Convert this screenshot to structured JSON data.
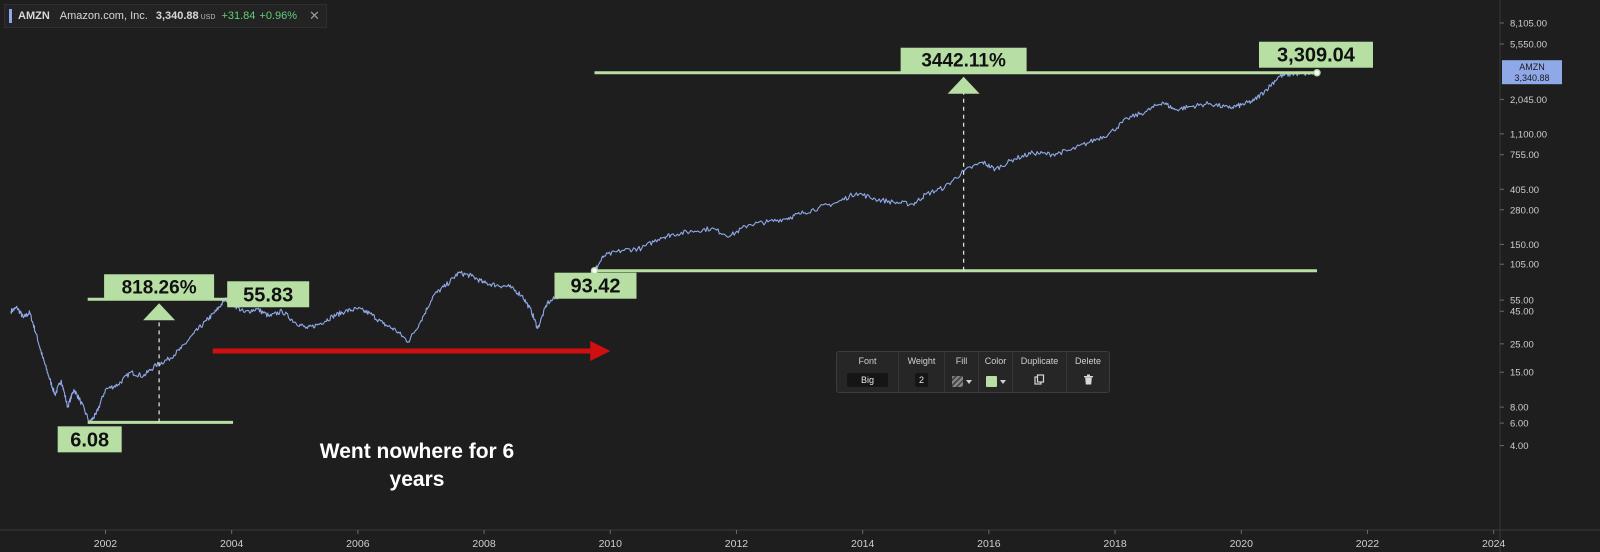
{
  "legend": {
    "symbol": "AMZN",
    "name": "Amazon.com, Inc.",
    "price": "3,340.88",
    "currency": "USD",
    "change": "+31.84",
    "change_pct": "+0.96%",
    "close_glyph": "✕"
  },
  "price_tag": {
    "symbol": "AMZN",
    "price": "3,340.88"
  },
  "toolbar": {
    "font_label": "Font",
    "font_value": "Big",
    "weight_label": "Weight",
    "weight_value": "2",
    "fill_label": "Fill",
    "color_label": "Color",
    "duplicate_label": "Duplicate",
    "delete_label": "Delete",
    "fill_icon": "hatched-swatch-icon",
    "duplicate_icon": "duplicate-icon",
    "delete_icon": "trash-icon"
  },
  "colors": {
    "background": "#1e1e1e",
    "series": "#8fa8e8",
    "annotation": "#b7dfa4",
    "annotation_text": "#111111",
    "arrow": "#d01010",
    "axis_text": "#cfcfcf",
    "tag_bg": "#8fa8e8"
  },
  "chart_data": {
    "type": "line",
    "y_scale": "log",
    "x_ticks": [
      "2002",
      "2004",
      "2006",
      "2008",
      "2010",
      "2012",
      "2014",
      "2016",
      "2018",
      "2020",
      "2022",
      "2024"
    ],
    "y_ticks": [
      4,
      6,
      8,
      15,
      25,
      45,
      55,
      105,
      150,
      280,
      405,
      755,
      1100,
      2045,
      5550,
      8105
    ],
    "y_tick_labels": [
      "4.00",
      "6.00",
      "8.00",
      "15.00",
      "25.00",
      "45.00",
      "55.00",
      "105.00",
      "150.00",
      "280.00",
      "405.00",
      "755.00",
      "1,100.00",
      "2,045.00",
      "5,550.00",
      "8,105.00"
    ],
    "xlim": [
      2000.5,
      2024.2
    ],
    "ylim": [
      3.6,
      11000
    ],
    "series": [
      {
        "symbol": "AMZN",
        "x": [
          2000.5,
          2000.6,
          2000.7,
          2000.8,
          2000.9,
          2001.0,
          2001.1,
          2001.2,
          2001.3,
          2001.4,
          2001.5,
          2001.6,
          2001.75,
          2001.85,
          2002.0,
          2002.2,
          2002.4,
          2002.6,
          2002.8,
          2003.0,
          2003.2,
          2003.4,
          2003.6,
          2003.75,
          2003.9,
          2004.0,
          2004.2,
          2004.4,
          2004.6,
          2004.8,
          2005.0,
          2005.2,
          2005.4,
          2005.6,
          2005.8,
          2006.0,
          2006.2,
          2006.4,
          2006.6,
          2006.8,
          2007.0,
          2007.2,
          2007.4,
          2007.6,
          2007.8,
          2008.0,
          2008.2,
          2008.4,
          2008.6,
          2008.75,
          2008.85,
          2009.0,
          2009.2,
          2009.4,
          2009.6,
          2009.75,
          2009.9,
          2010.2,
          2010.5,
          2010.8,
          2011.0,
          2011.3,
          2011.6,
          2011.9,
          2012.2,
          2012.5,
          2012.8,
          2013.0,
          2013.3,
          2013.6,
          2013.9,
          2014.2,
          2014.5,
          2014.8,
          2015.0,
          2015.3,
          2015.6,
          2015.9,
          2016.1,
          2016.4,
          2016.7,
          2017.0,
          2017.3,
          2017.6,
          2017.9,
          2018.2,
          2018.5,
          2018.75,
          2018.95,
          2019.2,
          2019.5,
          2019.8,
          2020.0,
          2020.2,
          2020.4,
          2020.6,
          2020.8,
          2021.0,
          2021.2
        ],
        "y": [
          45,
          48,
          40,
          44,
          30,
          20,
          14,
          10,
          13,
          8,
          11,
          9,
          6.08,
          7,
          11,
          12,
          15,
          14,
          17,
          19,
          23,
          30,
          38,
          45,
          55.83,
          52,
          44,
          47,
          41,
          45,
          37,
          33,
          36,
          41,
          45,
          47,
          43,
          36,
          32,
          26,
          38,
          60,
          72,
          90,
          85,
          75,
          72,
          70,
          60,
          45,
          33,
          52,
          60,
          80,
          85,
          93.42,
          122,
          135,
          140,
          170,
          180,
          190,
          200,
          175,
          215,
          225,
          240,
          260,
          290,
          320,
          380,
          340,
          320,
          310,
          370,
          420,
          560,
          660,
          580,
          700,
          780,
          760,
          820,
          950,
          1100,
          1450,
          1650,
          1950,
          1700,
          1800,
          1900,
          1750,
          1850,
          2000,
          2450,
          3100,
          3250,
          3250,
          3309.04
        ]
      }
    ],
    "annotations": [
      {
        "label": "818.26%",
        "from": 6.08,
        "to": 55.83,
        "x_from": 2001.75,
        "x_to": 2003.8,
        "x_mid": 2002.85
      },
      {
        "label": "3442.11%",
        "from": 93.42,
        "to": 3309.04,
        "x_from": 2009.75,
        "x_to": 2021.2,
        "x_mid": 2015.6
      },
      {
        "label": "6.08",
        "x": 2001.75,
        "y": 6.08
      },
      {
        "label": "55.83",
        "x": 2003.85,
        "y": 55.83
      },
      {
        "label": "93.42",
        "x": 2009.75,
        "y": 93.42
      },
      {
        "label": "3,309.04",
        "x": 2021.2,
        "y": 3309.04
      }
    ],
    "text_note": "Went nowhere for 6 years",
    "arrow": {
      "x_from": 2003.7,
      "x_to": 2010.0,
      "y": 22
    }
  }
}
